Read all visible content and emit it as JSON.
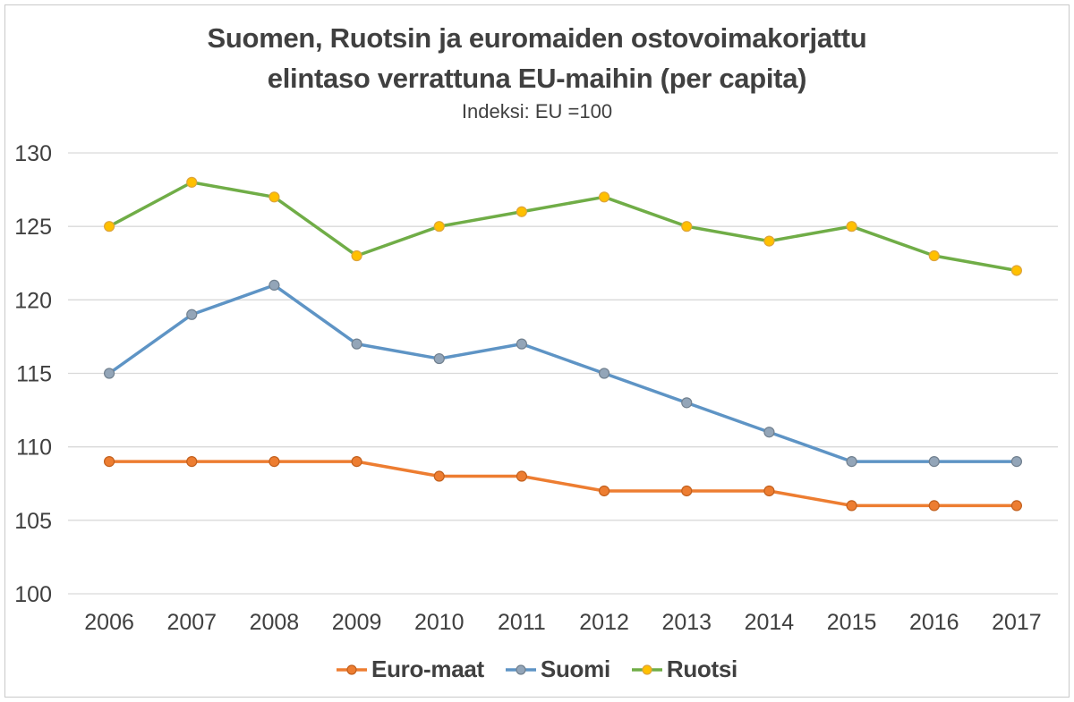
{
  "chart_data": {
    "type": "line",
    "title": "Suomen, Ruotsin ja euromaiden ostovoimakorjattu elintaso verrattuna EU-maihin (per capita)",
    "title_line1": "Suomen, Ruotsin ja euromaiden ostovoimakorjattu",
    "title_line2": "elintaso verrattuna EU-maihin (per capita)",
    "subtitle": "Indeksi: EU =100",
    "categories": [
      "2006",
      "2007",
      "2008",
      "2009",
      "2010",
      "2011",
      "2012",
      "2013",
      "2014",
      "2015",
      "2016",
      "2017"
    ],
    "series": [
      {
        "name": "Euro-maat",
        "values": [
          109,
          109,
          109,
          109,
          108,
          108,
          107,
          107,
          107,
          106,
          106,
          106
        ],
        "line_color": "#ED7D31",
        "marker_fill": "#ED7D31",
        "marker_stroke": "#C2601E"
      },
      {
        "name": "Suomi",
        "values": [
          115,
          119,
          121,
          117,
          116,
          117,
          115,
          113,
          111,
          109,
          109,
          109
        ],
        "line_color": "#5E94C5",
        "marker_fill": "#93A5B8",
        "marker_stroke": "#71808F"
      },
      {
        "name": "Ruotsi",
        "values": [
          125,
          128,
          127,
          123,
          125,
          126,
          127,
          125,
          124,
          125,
          123,
          122
        ],
        "line_color": "#70AD47",
        "marker_fill": "#FFC000",
        "marker_stroke": "#DDA43C"
      }
    ],
    "ylim": [
      100,
      130
    ],
    "ytick_step": 5,
    "yticks": [
      "100",
      "105",
      "110",
      "115",
      "120",
      "125",
      "130"
    ],
    "grid": true,
    "gridline_color": "#D9D9D9",
    "text_color": "#404040",
    "legend_position": "bottom"
  }
}
